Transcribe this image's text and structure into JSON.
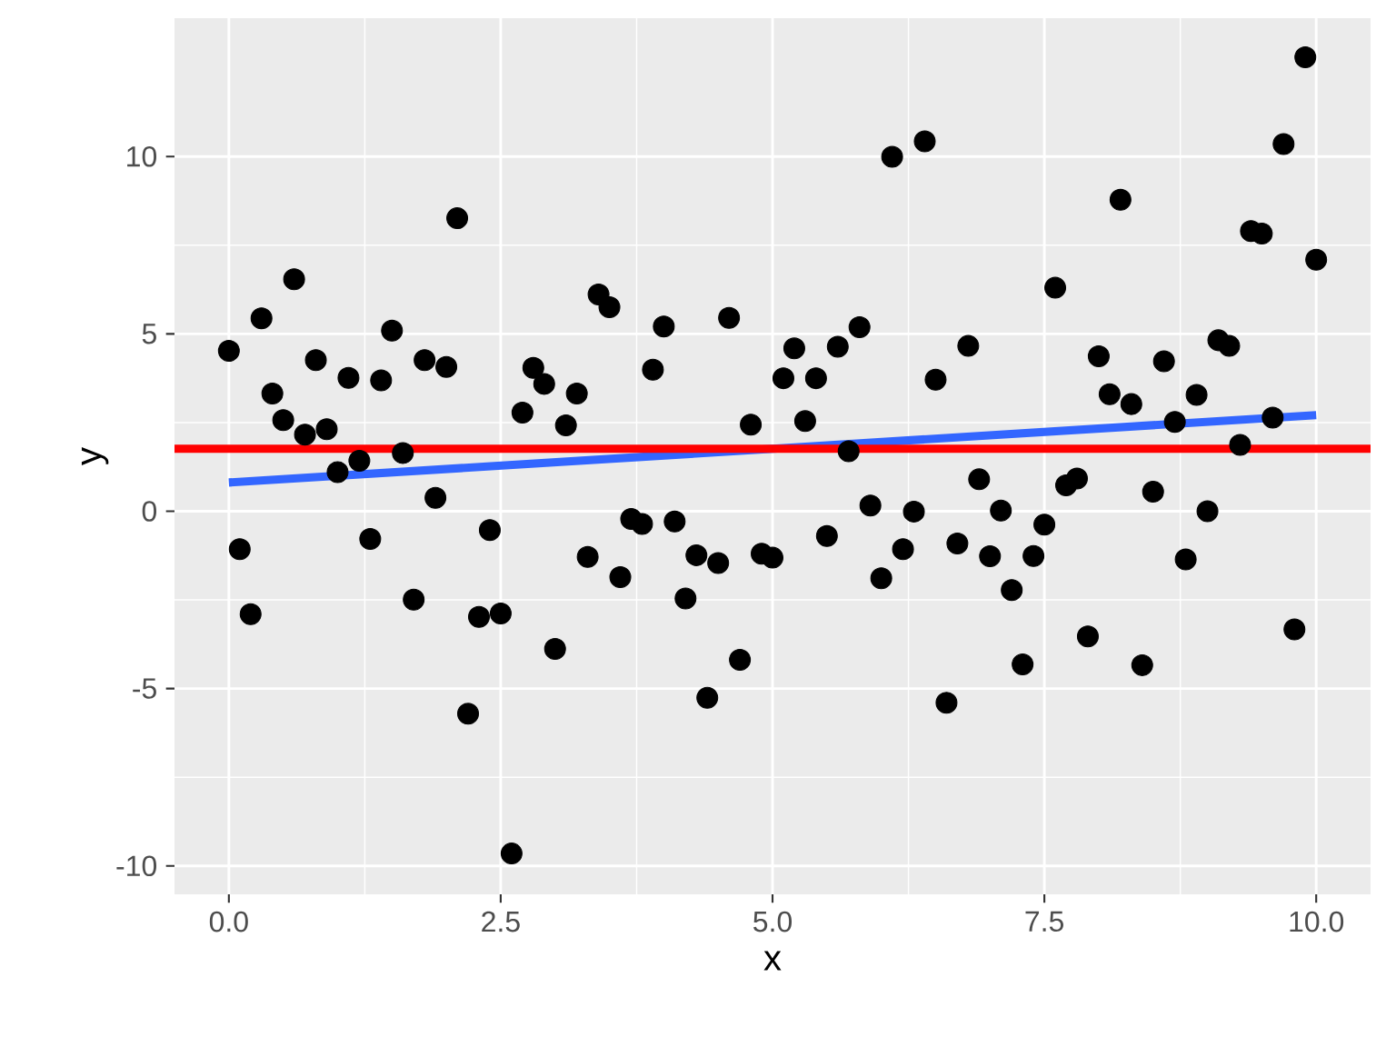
{
  "chart_data": {
    "type": "scatter",
    "xlabel": "x",
    "ylabel": "y",
    "xlim": [
      -0.5,
      10.5
    ],
    "ylim": [
      -10.8,
      13.9
    ],
    "xticks": [
      {
        "value": 0,
        "label": "0.0"
      },
      {
        "value": 2.5,
        "label": "2.5"
      },
      {
        "value": 5,
        "label": "5.0"
      },
      {
        "value": 7.5,
        "label": "7.5"
      },
      {
        "value": 10,
        "label": "10.0"
      }
    ],
    "yticks": [
      -10,
      -5,
      0,
      5,
      10
    ],
    "grid": true,
    "series": [
      {
        "marker": "circle",
        "color": "#000000",
        "x": [
          0.0,
          0.1,
          0.2,
          0.3,
          0.4,
          0.5,
          0.6,
          0.7,
          0.8,
          0.9,
          1.0,
          1.1,
          1.2,
          1.3,
          1.4,
          1.5,
          1.6,
          1.7,
          1.8,
          1.9,
          2.0,
          2.1,
          2.2,
          2.3,
          2.4,
          2.5,
          2.6,
          2.7,
          2.8,
          2.9,
          3.0,
          3.1,
          3.2,
          3.3,
          3.4,
          3.5,
          3.6,
          3.7,
          3.8,
          3.9,
          4.0,
          4.1,
          4.2,
          4.3,
          4.4,
          4.5,
          4.6,
          4.7,
          4.8,
          4.9,
          5.0,
          5.1,
          5.2,
          5.3,
          5.4,
          5.5,
          5.6,
          5.7,
          5.8,
          5.9,
          6.0,
          6.1,
          6.2,
          6.3,
          6.4,
          6.5,
          6.6,
          6.7,
          6.8,
          6.9,
          7.0,
          7.1,
          7.2,
          7.3,
          7.4,
          7.5,
          7.6,
          7.7,
          7.8,
          7.9,
          8.0,
          8.1,
          8.2,
          8.3,
          8.4,
          8.5,
          8.6,
          8.7,
          8.8,
          8.9,
          9.0,
          9.1,
          9.2,
          9.3,
          9.4,
          9.5,
          9.6,
          9.7,
          9.8,
          9.9,
          10.0
        ],
        "values": [
          4.52,
          -1.07,
          -2.9,
          5.44,
          3.32,
          2.57,
          6.54,
          2.16,
          4.26,
          2.31,
          1.1,
          3.76,
          1.42,
          -0.78,
          3.69,
          5.09,
          1.64,
          -2.49,
          4.26,
          0.38,
          4.07,
          8.26,
          -5.71,
          -2.98,
          -0.53,
          -2.88,
          -9.65,
          2.78,
          4.04,
          3.59,
          -3.88,
          2.42,
          3.32,
          -1.29,
          6.11,
          5.75,
          -1.86,
          -0.22,
          -0.36,
          3.99,
          5.21,
          -0.29,
          -2.46,
          -1.24,
          -5.26,
          -1.46,
          5.45,
          -4.19,
          2.44,
          -1.2,
          -1.31,
          3.75,
          4.59,
          2.54,
          3.75,
          -0.7,
          4.64,
          1.69,
          5.19,
          0.16,
          -1.89,
          9.99,
          -1.07,
          -0.01,
          10.43,
          3.71,
          -5.4,
          -0.91,
          4.66,
          0.9,
          -1.27,
          0.02,
          -2.22,
          -4.32,
          -1.26,
          -0.38,
          6.3,
          0.73,
          0.92,
          -3.53,
          4.37,
          3.3,
          8.78,
          3.02,
          -4.34,
          0.55,
          4.23,
          2.52,
          -1.36,
          3.28,
          0.0,
          4.82,
          4.66,
          1.87,
          7.9,
          7.83,
          2.64,
          10.35,
          -3.33,
          12.8,
          7.09
        ]
      },
      {
        "type": "line",
        "marker": "none",
        "color": "#3366ff",
        "x": [
          0,
          10
        ],
        "values": [
          0.81,
          2.71
        ]
      }
    ],
    "ref_lines": [
      {
        "axis": "y",
        "value": 1.76,
        "color": "#ff0000"
      }
    ]
  }
}
